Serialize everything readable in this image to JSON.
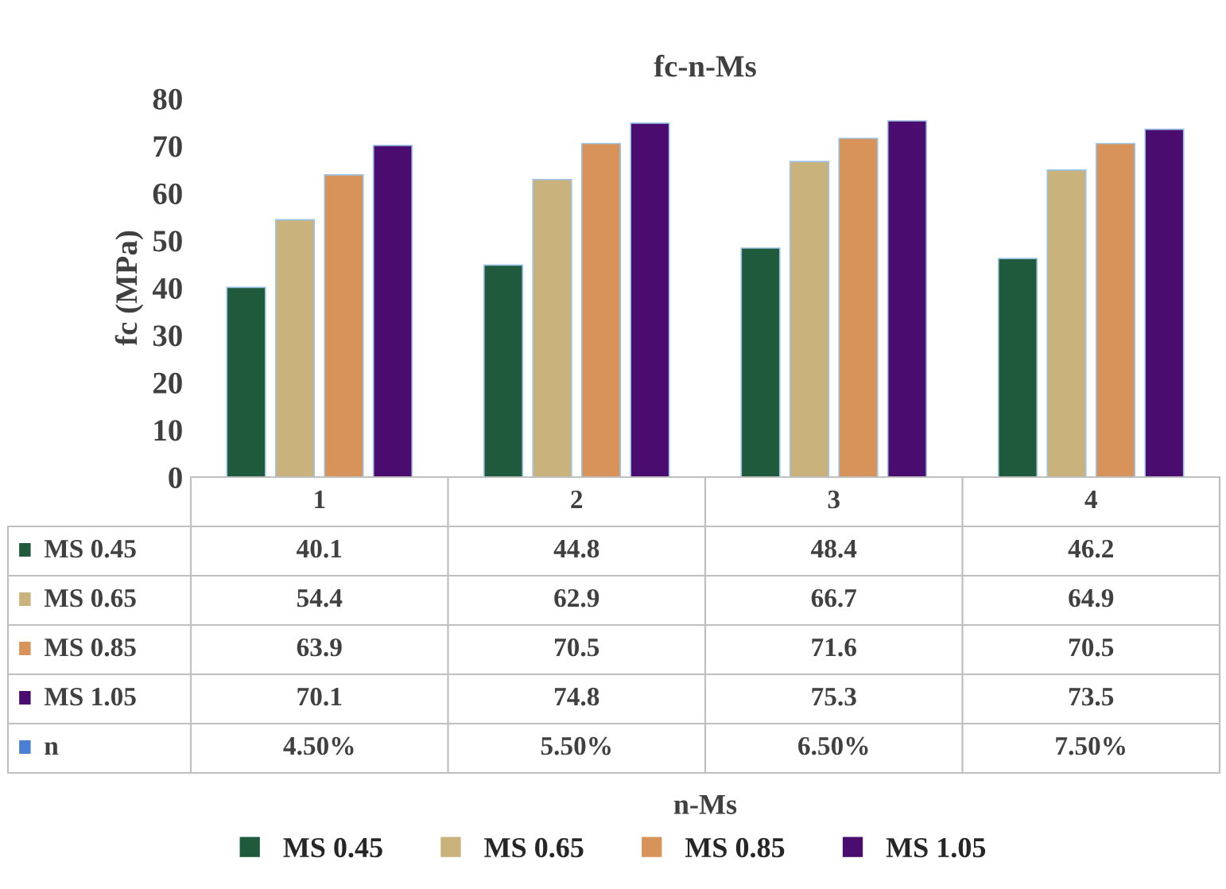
{
  "chart_data": {
    "type": "bar",
    "title": "fc-n-Ms",
    "annotations": [
      "n-Ms"
    ],
    "ylabel": "fc (MPa)",
    "categories": [
      "1",
      "2",
      "3",
      "4"
    ],
    "series": [
      {
        "name": "MS 0.45",
        "color": "#1f5a3c",
        "values": [
          40.1,
          44.8,
          48.4,
          46.2
        ]
      },
      {
        "name": "MS 0.65",
        "color": "#c9b27c",
        "values": [
          54.4,
          62.9,
          66.7,
          64.9
        ]
      },
      {
        "name": "MS 0.85",
        "color": "#d8935a",
        "values": [
          63.9,
          70.5,
          71.6,
          70.5
        ]
      },
      {
        "name": "MS 1.05",
        "color": "#4a0c6e",
        "values": [
          70.1,
          74.8,
          75.3,
          73.5
        ]
      },
      {
        "name": "n",
        "color": "#4a7fd4",
        "values": [
          null,
          null,
          null,
          null
        ],
        "value_labels": [
          "4.50%",
          "5.50%",
          "6.50%",
          "7.50%"
        ]
      }
    ],
    "ylim": [
      0,
      80
    ],
    "yticks": [
      0,
      10,
      20,
      30,
      40,
      50,
      60,
      70,
      80
    ],
    "data_labels": true,
    "legend": "bottom",
    "grid": false
  }
}
